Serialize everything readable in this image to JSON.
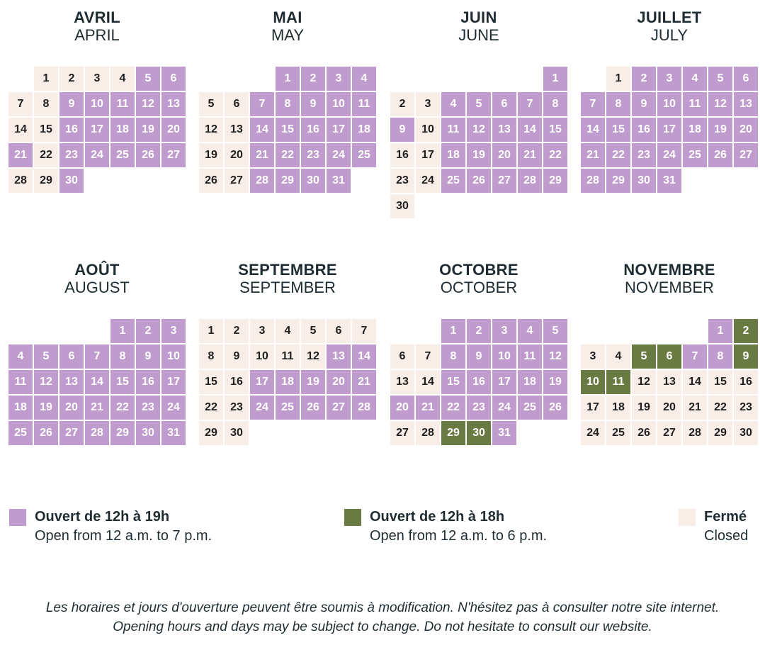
{
  "colors": {
    "open_12_19": "#c09bcd",
    "open_12_18": "#697a42",
    "closed": "#f8eee7"
  },
  "months": [
    {
      "fr": "AVRIL",
      "en": "APRIL",
      "start_weekday": 1,
      "days": 30,
      "open19": [
        5,
        6,
        9,
        10,
        11,
        12,
        13,
        16,
        17,
        18,
        19,
        20,
        21,
        23,
        24,
        25,
        26,
        27,
        30
      ],
      "open18": []
    },
    {
      "fr": "MAI",
      "en": "MAY",
      "start_weekday": 3,
      "days": 31,
      "open19": [
        1,
        2,
        3,
        4,
        7,
        8,
        9,
        10,
        11,
        14,
        15,
        16,
        17,
        18,
        21,
        22,
        23,
        24,
        25,
        28,
        29,
        30,
        31
      ],
      "open18": []
    },
    {
      "fr": "JUIN",
      "en": "JUNE",
      "start_weekday": 6,
      "days": 30,
      "open19": [
        1,
        4,
        5,
        6,
        7,
        8,
        9,
        11,
        12,
        13,
        14,
        15,
        18,
        19,
        20,
        21,
        22,
        25,
        26,
        27,
        28,
        29
      ],
      "open18": []
    },
    {
      "fr": "JUILLET",
      "en": "JULY",
      "start_weekday": 1,
      "days": 31,
      "open19": [
        2,
        3,
        4,
        5,
        6,
        7,
        8,
        9,
        10,
        11,
        12,
        13,
        14,
        15,
        16,
        17,
        18,
        19,
        20,
        21,
        22,
        23,
        24,
        25,
        26,
        27,
        28,
        29,
        30,
        31
      ],
      "open18": []
    },
    {
      "fr": "AOÛT",
      "en": "AUGUST",
      "start_weekday": 4,
      "days": 31,
      "open19": [
        1,
        2,
        3,
        4,
        5,
        6,
        7,
        8,
        9,
        10,
        11,
        12,
        13,
        14,
        15,
        16,
        17,
        18,
        19,
        20,
        21,
        22,
        23,
        24,
        25,
        26,
        27,
        28,
        29,
        30,
        31
      ],
      "open18": []
    },
    {
      "fr": "SEPTEMBRE",
      "en": "SEPTEMBER",
      "start_weekday": 0,
      "days": 30,
      "open19": [
        13,
        14,
        17,
        18,
        19,
        20,
        21,
        24,
        25,
        26,
        27,
        28
      ],
      "open18": []
    },
    {
      "fr": "OCTOBRE",
      "en": "OCTOBER",
      "start_weekday": 2,
      "days": 31,
      "open19": [
        1,
        2,
        3,
        4,
        5,
        8,
        9,
        10,
        11,
        12,
        15,
        16,
        17,
        18,
        19,
        20,
        21,
        22,
        23,
        24,
        25,
        26,
        31
      ],
      "open18": [
        29,
        30
      ]
    },
    {
      "fr": "NOVEMBRE",
      "en": "NOVEMBER",
      "start_weekday": 5,
      "days": 30,
      "open19": [
        1,
        7,
        8
      ],
      "open18": [
        2,
        5,
        6,
        9,
        10,
        11
      ]
    }
  ],
  "legend": [
    {
      "type": "open19",
      "fr": "Ouvert de 12h à 19h",
      "en": "Open from 12 a.m. to 7 p.m."
    },
    {
      "type": "open18",
      "fr": "Ouvert de 12h à 18h",
      "en": "Open from 12 a.m. to 6 p.m."
    },
    {
      "type": "closed",
      "fr": "Fermé",
      "en": "Closed"
    }
  ],
  "notes": {
    "fr": "Les horaires et jours d'ouverture peuvent être soumis à modification. N'hésitez pas à consulter notre site internet.",
    "en": "Opening hours and days may be subject to change. Do not hesitate to consult our website."
  }
}
